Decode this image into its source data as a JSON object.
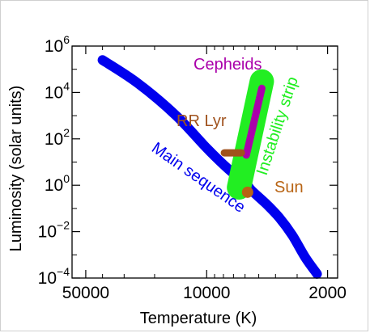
{
  "chart_data": {
    "type": "line",
    "title": "",
    "xlabel": "Temperature (K)",
    "ylabel": "Luminosity (solar units)",
    "x_scale": "log-reversed",
    "y_scale": "log",
    "xlim": [
      60000,
      1750
    ],
    "ylim": [
      0.0001,
      1000000
    ],
    "x_ticks": [
      {
        "value": 50000,
        "label": "50000"
      },
      {
        "value": 10000,
        "label": "10000"
      },
      {
        "value": 2000,
        "label": "2000"
      }
    ],
    "x_minor_ticks": [
      40000,
      30000,
      20000,
      9000,
      8000,
      7000,
      6000,
      5000,
      4000,
      3000
    ],
    "y_ticks": [
      {
        "value": 0.0001,
        "base": "10",
        "exp": "−4"
      },
      {
        "value": 0.01,
        "base": "10",
        "exp": "−2"
      },
      {
        "value": 1,
        "base": "10",
        "exp": "0"
      },
      {
        "value": 100,
        "base": "10",
        "exp": "2"
      },
      {
        "value": 10000,
        "base": "10",
        "exp": "4"
      },
      {
        "value": 1000000,
        "base": "10",
        "exp": "6"
      }
    ],
    "series": [
      {
        "name": "Main sequence",
        "color": "#0000ee",
        "points": [
          [
            40000,
            250000
          ],
          [
            25000,
            25000
          ],
          [
            15000,
            1000
          ],
          [
            10000,
            40
          ],
          [
            7500,
            5
          ],
          [
            6000,
            1.3
          ],
          [
            5500,
            0.6
          ],
          [
            4500,
            0.15
          ],
          [
            3800,
            0.04
          ],
          [
            3200,
            0.007
          ],
          [
            2700,
            0.0008
          ],
          [
            2300,
            0.00015
          ]
        ]
      },
      {
        "name": "Instability strip",
        "color": "#22ee22",
        "points": [
          [
            6500,
            0.8
          ],
          [
            4800,
            30000
          ]
        ]
      },
      {
        "name": "Cepheids",
        "color": "#aa00aa",
        "points": [
          [
            5900,
            20
          ],
          [
            4800,
            15000
          ]
        ]
      },
      {
        "name": "RR Lyr",
        "color": "#a0521d",
        "points": [
          [
            7900,
            25
          ],
          [
            6300,
            25
          ]
        ]
      }
    ],
    "annotations": [
      {
        "text": "Main sequence",
        "color": "#0000ee"
      },
      {
        "text": "Instability strip",
        "color": "#22ee22"
      },
      {
        "text": "Cepheids",
        "color": "#aa00aa"
      },
      {
        "text": "RR Lyr",
        "color": "#a0521d"
      },
      {
        "text": "Sun",
        "color": "#b86414"
      }
    ],
    "points": [
      {
        "name": "Sun",
        "x": 5800,
        "y": 0.5,
        "color": "#b86414"
      }
    ],
    "grid": false,
    "legend": "none"
  }
}
